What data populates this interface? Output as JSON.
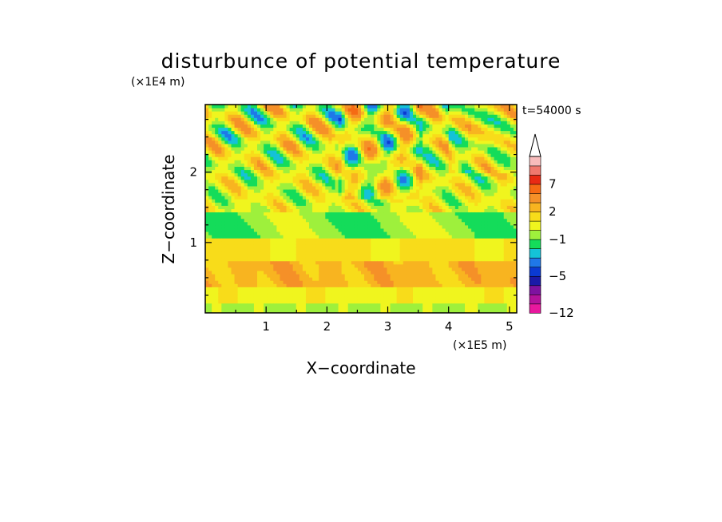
{
  "chart_data": {
    "type": "heatmap",
    "title": "disturbunce of potential temperature",
    "xlabel": "X−coordinate",
    "ylabel": "Z−coordinate",
    "x_scale_label": "(×1E5 m)",
    "y_scale_label": "(×1E4 m)",
    "time_label": "t=54000 s",
    "xlim": [
      0,
      5.12
    ],
    "ylim": [
      0,
      2.96
    ],
    "x_ticks": [
      {
        "value": 1,
        "label": "1"
      },
      {
        "value": 2,
        "label": "2"
      },
      {
        "value": 3,
        "label": "3"
      },
      {
        "value": 4,
        "label": "4"
      },
      {
        "value": 5,
        "label": "5"
      }
    ],
    "y_ticks": [
      {
        "value": 1,
        "label": "1"
      },
      {
        "value": 2,
        "label": "2"
      }
    ],
    "colorbar": {
      "levels": [
        -12,
        -10,
        -8,
        -6,
        -5,
        -4,
        -3,
        -2,
        -1,
        0,
        1,
        2,
        3,
        5,
        7,
        9,
        11
      ],
      "colors": [
        "#e8189e",
        "#b4139c",
        "#7e12a0",
        "#1a1aa8",
        "#0a3ad2",
        "#1f78e8",
        "#14c2d8",
        "#14dc5a",
        "#9ef03c",
        "#f0f51e",
        "#f8dc1a",
        "#f8b420",
        "#f59028",
        "#f56a14",
        "#e82a14",
        "#f0786e",
        "#f8bcbc"
      ],
      "tick_labels": [
        {
          "value": -12,
          "label": "−12"
        },
        {
          "value": -5,
          "label": "−5"
        },
        {
          "value": -1,
          "label": "−1"
        },
        {
          "value": 2,
          "label": "2"
        },
        {
          "value": 7,
          "label": "7"
        }
      ]
    },
    "field_description_by_height": [
      {
        "z_range": [
          0.0,
          0.15
        ],
        "value": 0
      },
      {
        "z_range": [
          0.15,
          0.35
        ],
        "value": 0.5
      },
      {
        "z_range": [
          0.35,
          0.75
        ],
        "value": 2.5
      },
      {
        "z_range": [
          0.75,
          1.05
        ],
        "value": 1.5
      },
      {
        "z_range": [
          1.05,
          1.45
        ],
        "value": -0.5
      },
      {
        "z_range": [
          1.45,
          2.96
        ],
        "value": "wavy mixed field, range about -5 to 3"
      }
    ]
  }
}
